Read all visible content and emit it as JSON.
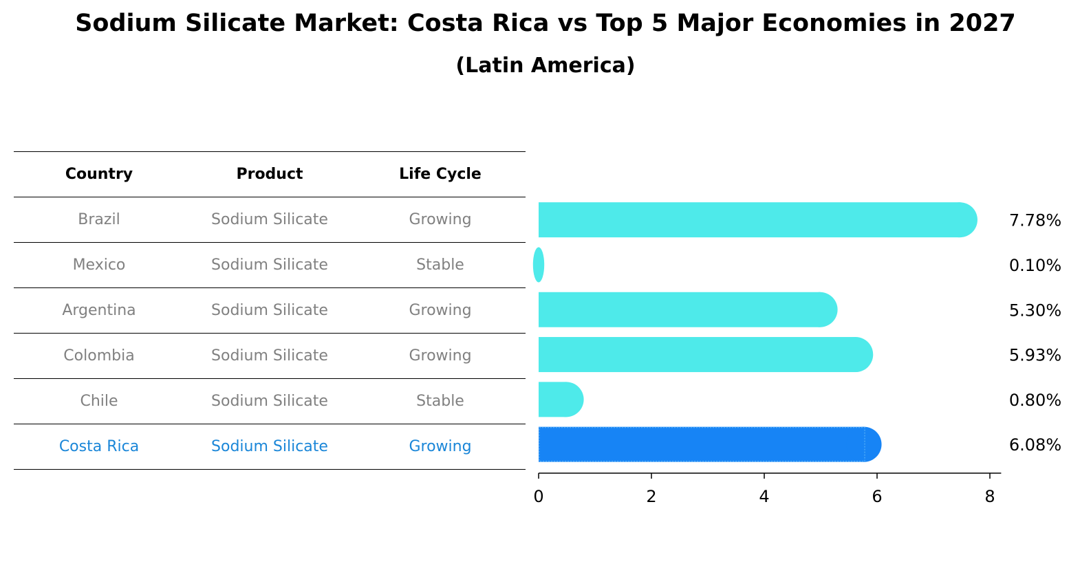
{
  "title": "Sodium Silicate Market: Costa Rica vs Top 5 Major Economies in 2027",
  "subtitle": "(Latin America)",
  "table": {
    "headers": [
      "Country",
      "Product",
      "Life Cycle"
    ],
    "rows": [
      {
        "country": "Brazil",
        "product": "Sodium Silicate",
        "life_cycle": "Growing"
      },
      {
        "country": "Mexico",
        "product": "Sodium Silicate",
        "life_cycle": "Stable"
      },
      {
        "country": "Argentina",
        "product": "Sodium Silicate",
        "life_cycle": "Growing"
      },
      {
        "country": "Colombia",
        "product": "Sodium Silicate",
        "life_cycle": "Growing"
      },
      {
        "country": "Chile",
        "product": "Sodium Silicate",
        "life_cycle": "Stable"
      },
      {
        "country": "Costa Rica",
        "product": "Sodium Silicate",
        "life_cycle": "Growing"
      }
    ]
  },
  "chart_data": {
    "type": "bar",
    "orientation": "horizontal",
    "title": "Sodium Silicate Market: Costa Rica vs Top 5 Major Economies in 2027",
    "subtitle": "(Latin America)",
    "categories": [
      "Brazil",
      "Mexico",
      "Argentina",
      "Colombia",
      "Chile",
      "Costa Rica"
    ],
    "values": [
      7.78,
      0.1,
      5.3,
      5.93,
      0.8,
      6.08
    ],
    "value_labels": [
      "7.78%",
      "0.10%",
      "5.30%",
      "5.93%",
      "0.80%",
      "6.08%"
    ],
    "highlight": "Costa Rica",
    "xlim": [
      0,
      8.2
    ],
    "xticks": [
      0,
      2,
      4,
      6,
      8
    ],
    "xlabel": "",
    "ylabel": "",
    "colors": {
      "bar": "#4eeaea",
      "highlight": "#1784f5"
    }
  }
}
